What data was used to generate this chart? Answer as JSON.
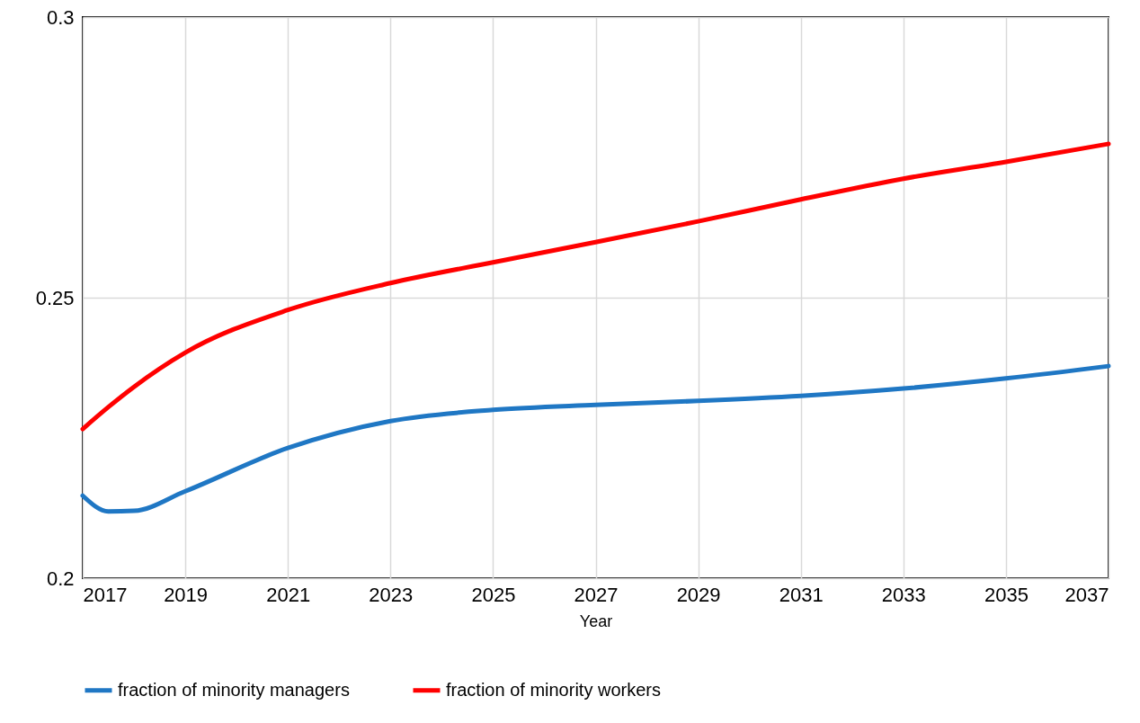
{
  "chart_data": {
    "type": "line",
    "xlabel": "Year",
    "x": [
      2017,
      2017.5,
      2018,
      2019,
      2021,
      2023,
      2025,
      2027,
      2029,
      2031,
      2033,
      2035,
      2037
    ],
    "series": [
      {
        "name": "fraction of minority managers",
        "color": "#1f77c4",
        "values": [
          0.2147,
          0.2119,
          0.212,
          0.2155,
          0.2232,
          0.228,
          0.23,
          0.2309,
          0.2316,
          0.2325,
          0.2338,
          0.2356,
          0.2378
        ]
      },
      {
        "name": "fraction of minority workers",
        "color": "#ff0000",
        "values": [
          0.2266,
          0.2305,
          0.2341,
          0.2402,
          0.2478,
          0.2526,
          0.2563,
          0.2599,
          0.2636,
          0.2675,
          0.2712,
          0.2742,
          0.2774
        ]
      }
    ],
    "xlim": [
      2017,
      2037
    ],
    "xticks": [
      2017,
      2019,
      2021,
      2023,
      2025,
      2027,
      2029,
      2031,
      2033,
      2035,
      2037
    ],
    "ylim": [
      0.2,
      0.3
    ],
    "yticks": [
      0.2,
      0.25,
      0.3
    ],
    "grid": true,
    "legend": "bottom",
    "line_style": "solid",
    "marker": "none"
  }
}
